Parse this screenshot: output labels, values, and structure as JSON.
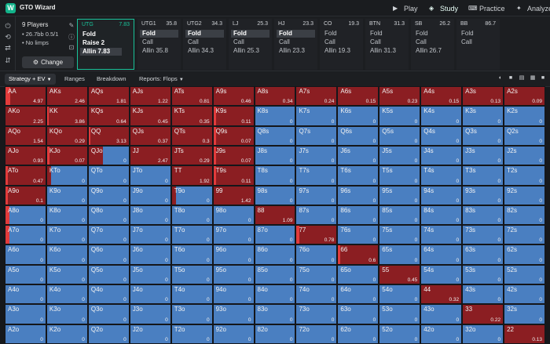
{
  "app": {
    "name": "GTO Wizard",
    "logo_letter": "W"
  },
  "nav": [
    {
      "label": "Play",
      "icon": "play-icon",
      "active": false
    },
    {
      "label": "Study",
      "icon": "study-icon",
      "active": true
    },
    {
      "label": "Practice",
      "icon": "practice-icon",
      "active": false
    },
    {
      "label": "Analyze",
      "icon": "analyze-icon",
      "active": false
    }
  ],
  "game": {
    "players": "9 Players",
    "stack": "• 26.7bb 0.5/1",
    "limps": "• No limps",
    "change_label": "Change"
  },
  "positions": [
    {
      "name": "UTG",
      "stack": "7.83",
      "active": true,
      "actions": [
        "Fold",
        "Raise 2",
        "Allin 7.83"
      ],
      "selected": 2
    },
    {
      "name": "UTG1",
      "stack": "35.8",
      "active": false,
      "actions": [
        "Fold",
        "Call",
        "Allin 35.8"
      ],
      "selected": 0
    },
    {
      "name": "UTG2",
      "stack": "34.3",
      "active": false,
      "actions": [
        "Fold",
        "Call",
        "Allin 34.3"
      ],
      "selected": 0
    },
    {
      "name": "LJ",
      "stack": "25.3",
      "active": false,
      "actions": [
        "Fold",
        "Call",
        "Allin 25.3"
      ],
      "selected": 0
    },
    {
      "name": "HJ",
      "stack": "23.3",
      "active": false,
      "actions": [
        "Fold",
        "Call",
        "Allin 23.3"
      ],
      "selected": 0
    },
    {
      "name": "CO",
      "stack": "19.3",
      "active": false,
      "actions": [
        "Fold",
        "Call",
        "Allin 19.3"
      ],
      "selected": -1
    },
    {
      "name": "BTN",
      "stack": "31.3",
      "active": false,
      "actions": [
        "Fold",
        "Call",
        "Allin 31.3"
      ],
      "selected": -1
    },
    {
      "name": "SB",
      "stack": "26.2",
      "active": false,
      "actions": [
        "Fold",
        "Call",
        "Allin 26.7"
      ],
      "selected": -1
    },
    {
      "name": "BB",
      "stack": "86.7",
      "active": false,
      "actions": [
        "Fold",
        "Call"
      ],
      "selected": -1
    }
  ],
  "toolbar": {
    "tabs": [
      "Strategy + EV",
      "Ranges",
      "Breakdown",
      "Reports: Flops"
    ]
  },
  "colors": {
    "allin": "#8b1e22",
    "allin_bright": "#e23b3b",
    "fold": "#4a7fc1"
  },
  "grid": {
    "ranks": [
      "A",
      "K",
      "Q",
      "J",
      "T",
      "9",
      "8",
      "7",
      "6",
      "5",
      "4",
      "3",
      "2"
    ],
    "rows": [
      [
        {
          "h": "AA",
          "ev": "4.97",
          "a": 1,
          "b": 0.12
        },
        {
          "h": "AKs",
          "ev": "2.46",
          "a": 1
        },
        {
          "h": "AQs",
          "ev": "1.81",
          "a": 1
        },
        {
          "h": "AJs",
          "ev": "1.22",
          "a": 1
        },
        {
          "h": "ATs",
          "ev": "0.81",
          "a": 1
        },
        {
          "h": "A9s",
          "ev": "0.46",
          "a": 1
        },
        {
          "h": "A8s",
          "ev": "0.34",
          "a": 1
        },
        {
          "h": "A7s",
          "ev": "0.24",
          "a": 1
        },
        {
          "h": "A6s",
          "ev": "0.15",
          "a": 1
        },
        {
          "h": "A5s",
          "ev": "0.23",
          "a": 1
        },
        {
          "h": "A4s",
          "ev": "0.15",
          "a": 1
        },
        {
          "h": "A3s",
          "ev": "0.13",
          "a": 1
        },
        {
          "h": "A2s",
          "ev": "0.09",
          "a": 1
        }
      ],
      [
        {
          "h": "AKo",
          "ev": "2.25",
          "a": 1
        },
        {
          "h": "KK",
          "ev": "3.86",
          "a": 1,
          "b": 0.05
        },
        {
          "h": "KQs",
          "ev": "0.64",
          "a": 1
        },
        {
          "h": "KJs",
          "ev": "0.45",
          "a": 1
        },
        {
          "h": "KTs",
          "ev": "0.35",
          "a": 1
        },
        {
          "h": "K9s",
          "ev": "0.11",
          "a": 1,
          "b": 0.06
        },
        {
          "h": "K8s",
          "ev": "0",
          "a": 0
        },
        {
          "h": "K7s",
          "ev": "0",
          "a": 0
        },
        {
          "h": "K6s",
          "ev": "0",
          "a": 0
        },
        {
          "h": "K5s",
          "ev": "0",
          "a": 0
        },
        {
          "h": "K4s",
          "ev": "0",
          "a": 0
        },
        {
          "h": "K3s",
          "ev": "0",
          "a": 0
        },
        {
          "h": "K2s",
          "ev": "0",
          "a": 0
        }
      ],
      [
        {
          "h": "AQo",
          "ev": "1.54",
          "a": 1
        },
        {
          "h": "KQo",
          "ev": "0.29",
          "a": 1
        },
        {
          "h": "QQ",
          "ev": "3.13",
          "a": 1,
          "b": 0.04
        },
        {
          "h": "QJs",
          "ev": "0.37",
          "a": 1
        },
        {
          "h": "QTs",
          "ev": "0.3",
          "a": 1
        },
        {
          "h": "Q9s",
          "ev": "0.07",
          "a": 1,
          "b": 0.06
        },
        {
          "h": "Q8s",
          "ev": "0",
          "a": 0
        },
        {
          "h": "Q7s",
          "ev": "0",
          "a": 0
        },
        {
          "h": "Q6s",
          "ev": "0",
          "a": 0
        },
        {
          "h": "Q5s",
          "ev": "0",
          "a": 0
        },
        {
          "h": "Q4s",
          "ev": "0",
          "a": 0
        },
        {
          "h": "Q3s",
          "ev": "0",
          "a": 0
        },
        {
          "h": "Q2s",
          "ev": "0",
          "a": 0
        }
      ],
      [
        {
          "h": "AJo",
          "ev": "0.93",
          "a": 1
        },
        {
          "h": "KJo",
          "ev": "0.07",
          "a": 1,
          "b": 0.06
        },
        {
          "h": "QJo",
          "ev": "0",
          "a": 0.35
        },
        {
          "h": "JJ",
          "ev": "2.47",
          "a": 1
        },
        {
          "h": "JTs",
          "ev": "0.29",
          "a": 1
        },
        {
          "h": "J9s",
          "ev": "0.07",
          "a": 1,
          "b": 0.06
        },
        {
          "h": "J8s",
          "ev": "0",
          "a": 0
        },
        {
          "h": "J7s",
          "ev": "0",
          "a": 0
        },
        {
          "h": "J6s",
          "ev": "0",
          "a": 0
        },
        {
          "h": "J5s",
          "ev": "0",
          "a": 0
        },
        {
          "h": "J4s",
          "ev": "0",
          "a": 0
        },
        {
          "h": "J3s",
          "ev": "0",
          "a": 0
        },
        {
          "h": "J2s",
          "ev": "0",
          "a": 0
        }
      ],
      [
        {
          "h": "ATo",
          "ev": "0.47",
          "a": 1,
          "b": 0.06
        },
        {
          "h": "KTo",
          "ev": "0",
          "a": 0.1
        },
        {
          "h": "QTo",
          "ev": "0",
          "a": 0
        },
        {
          "h": "JTo",
          "ev": "0",
          "a": 0
        },
        {
          "h": "TT",
          "ev": "1.92",
          "a": 1
        },
        {
          "h": "T9s",
          "ev": "0.11",
          "a": 1,
          "b": 0.06
        },
        {
          "h": "T8s",
          "ev": "0",
          "a": 0
        },
        {
          "h": "T7s",
          "ev": "0",
          "a": 0
        },
        {
          "h": "T6s",
          "ev": "0",
          "a": 0
        },
        {
          "h": "T5s",
          "ev": "0",
          "a": 0
        },
        {
          "h": "T4s",
          "ev": "0",
          "a": 0
        },
        {
          "h": "T3s",
          "ev": "0",
          "a": 0
        },
        {
          "h": "T2s",
          "ev": "0",
          "a": 0
        }
      ],
      [
        {
          "h": "A9o",
          "ev": "0.1",
          "a": 1,
          "b": 0.06
        },
        {
          "h": "K9o",
          "ev": "0",
          "a": 0
        },
        {
          "h": "Q9o",
          "ev": "0",
          "a": 0
        },
        {
          "h": "J9o",
          "ev": "0",
          "a": 0
        },
        {
          "h": "T9o",
          "ev": "0",
          "a": 0.1
        },
        {
          "h": "99",
          "ev": "1.42",
          "a": 1
        },
        {
          "h": "98s",
          "ev": "0",
          "a": 0
        },
        {
          "h": "97s",
          "ev": "0",
          "a": 0
        },
        {
          "h": "96s",
          "ev": "0",
          "a": 0
        },
        {
          "h": "95s",
          "ev": "0",
          "a": 0
        },
        {
          "h": "94s",
          "ev": "0",
          "a": 0
        },
        {
          "h": "93s",
          "ev": "0",
          "a": 0
        },
        {
          "h": "92s",
          "ev": "0",
          "a": 0
        }
      ],
      [
        {
          "h": "A8o",
          "ev": "0",
          "a": 0.1,
          "b": 0.1
        },
        {
          "h": "K8o",
          "ev": "0",
          "a": 0
        },
        {
          "h": "Q8o",
          "ev": "0",
          "a": 0
        },
        {
          "h": "J8o",
          "ev": "0",
          "a": 0
        },
        {
          "h": "T8o",
          "ev": "0",
          "a": 0
        },
        {
          "h": "98o",
          "ev": "0",
          "a": 0
        },
        {
          "h": "88",
          "ev": "1.09",
          "a": 1
        },
        {
          "h": "87s",
          "ev": "0",
          "a": 0
        },
        {
          "h": "86s",
          "ev": "0",
          "a": 0
        },
        {
          "h": "85s",
          "ev": "0",
          "a": 0
        },
        {
          "h": "84s",
          "ev": "0",
          "a": 0
        },
        {
          "h": "83s",
          "ev": "0",
          "a": 0
        },
        {
          "h": "82s",
          "ev": "0",
          "a": 0
        }
      ],
      [
        {
          "h": "A7o",
          "ev": "0",
          "a": 0.1,
          "b": 0.1
        },
        {
          "h": "K7o",
          "ev": "0",
          "a": 0
        },
        {
          "h": "Q7o",
          "ev": "0",
          "a": 0
        },
        {
          "h": "J7o",
          "ev": "0",
          "a": 0
        },
        {
          "h": "T7o",
          "ev": "0",
          "a": 0
        },
        {
          "h": "97o",
          "ev": "0",
          "a": 0
        },
        {
          "h": "87o",
          "ev": "0",
          "a": 0
        },
        {
          "h": "77",
          "ev": "0.78",
          "a": 1,
          "b": 0.06
        },
        {
          "h": "76s",
          "ev": "0",
          "a": 0
        },
        {
          "h": "75s",
          "ev": "0",
          "a": 0
        },
        {
          "h": "74s",
          "ev": "0",
          "a": 0
        },
        {
          "h": "73s",
          "ev": "0",
          "a": 0
        },
        {
          "h": "72s",
          "ev": "0",
          "a": 0
        }
      ],
      [
        {
          "h": "A6o",
          "ev": "0",
          "a": 0
        },
        {
          "h": "K6o",
          "ev": "0",
          "a": 0
        },
        {
          "h": "Q6o",
          "ev": "0",
          "a": 0
        },
        {
          "h": "J6o",
          "ev": "0",
          "a": 0
        },
        {
          "h": "T6o",
          "ev": "0",
          "a": 0
        },
        {
          "h": "96o",
          "ev": "0",
          "a": 0
        },
        {
          "h": "86o",
          "ev": "0",
          "a": 0
        },
        {
          "h": "76o",
          "ev": "0",
          "a": 0
        },
        {
          "h": "66",
          "ev": "0.6",
          "a": 1,
          "b": 0.06
        },
        {
          "h": "65s",
          "ev": "0",
          "a": 0
        },
        {
          "h": "64s",
          "ev": "0",
          "a": 0
        },
        {
          "h": "63s",
          "ev": "0",
          "a": 0
        },
        {
          "h": "62s",
          "ev": "0",
          "a": 0
        }
      ],
      [
        {
          "h": "A5o",
          "ev": "0",
          "a": 0
        },
        {
          "h": "K5o",
          "ev": "0",
          "a": 0
        },
        {
          "h": "Q5o",
          "ev": "0",
          "a": 0
        },
        {
          "h": "J5o",
          "ev": "0",
          "a": 0
        },
        {
          "h": "T5o",
          "ev": "0",
          "a": 0
        },
        {
          "h": "95o",
          "ev": "0",
          "a": 0
        },
        {
          "h": "85o",
          "ev": "0",
          "a": 0
        },
        {
          "h": "75o",
          "ev": "0",
          "a": 0
        },
        {
          "h": "65o",
          "ev": "0",
          "a": 0
        },
        {
          "h": "55",
          "ev": "0.45",
          "a": 1
        },
        {
          "h": "54s",
          "ev": "0",
          "a": 0
        },
        {
          "h": "53s",
          "ev": "0",
          "a": 0
        },
        {
          "h": "52s",
          "ev": "0",
          "a": 0
        }
      ],
      [
        {
          "h": "A4o",
          "ev": "0",
          "a": 0
        },
        {
          "h": "K4o",
          "ev": "0",
          "a": 0
        },
        {
          "h": "Q4o",
          "ev": "0",
          "a": 0
        },
        {
          "h": "J4o",
          "ev": "0",
          "a": 0
        },
        {
          "h": "T4o",
          "ev": "0",
          "a": 0
        },
        {
          "h": "94o",
          "ev": "0",
          "a": 0
        },
        {
          "h": "84o",
          "ev": "0",
          "a": 0
        },
        {
          "h": "74o",
          "ev": "0",
          "a": 0
        },
        {
          "h": "64o",
          "ev": "0",
          "a": 0
        },
        {
          "h": "54o",
          "ev": "0",
          "a": 0
        },
        {
          "h": "44",
          "ev": "0.32",
          "a": 1
        },
        {
          "h": "43s",
          "ev": "0",
          "a": 0
        },
        {
          "h": "42s",
          "ev": "0",
          "a": 0
        }
      ],
      [
        {
          "h": "A3o",
          "ev": "0",
          "a": 0
        },
        {
          "h": "K3o",
          "ev": "0",
          "a": 0
        },
        {
          "h": "Q3o",
          "ev": "0",
          "a": 0
        },
        {
          "h": "J3o",
          "ev": "0",
          "a": 0
        },
        {
          "h": "T3o",
          "ev": "0",
          "a": 0
        },
        {
          "h": "93o",
          "ev": "0",
          "a": 0
        },
        {
          "h": "83o",
          "ev": "0",
          "a": 0
        },
        {
          "h": "73o",
          "ev": "0",
          "a": 0
        },
        {
          "h": "63o",
          "ev": "0",
          "a": 0
        },
        {
          "h": "53o",
          "ev": "0",
          "a": 0
        },
        {
          "h": "43o",
          "ev": "0",
          "a": 0
        },
        {
          "h": "33",
          "ev": "0.22",
          "a": 1
        },
        {
          "h": "32s",
          "ev": "0",
          "a": 0
        }
      ],
      [
        {
          "h": "A2o",
          "ev": "0",
          "a": 0
        },
        {
          "h": "K2o",
          "ev": "0",
          "a": 0
        },
        {
          "h": "Q2o",
          "ev": "0",
          "a": 0
        },
        {
          "h": "J2o",
          "ev": "0",
          "a": 0
        },
        {
          "h": "T2o",
          "ev": "0",
          "a": 0
        },
        {
          "h": "92o",
          "ev": "0",
          "a": 0
        },
        {
          "h": "82o",
          "ev": "0",
          "a": 0
        },
        {
          "h": "72o",
          "ev": "0",
          "a": 0
        },
        {
          "h": "62o",
          "ev": "0",
          "a": 0
        },
        {
          "h": "52o",
          "ev": "0",
          "a": 0
        },
        {
          "h": "42o",
          "ev": "0",
          "a": 0
        },
        {
          "h": "32o",
          "ev": "0",
          "a": 0
        },
        {
          "h": "22",
          "ev": "0.13",
          "a": 1
        }
      ]
    ]
  }
}
